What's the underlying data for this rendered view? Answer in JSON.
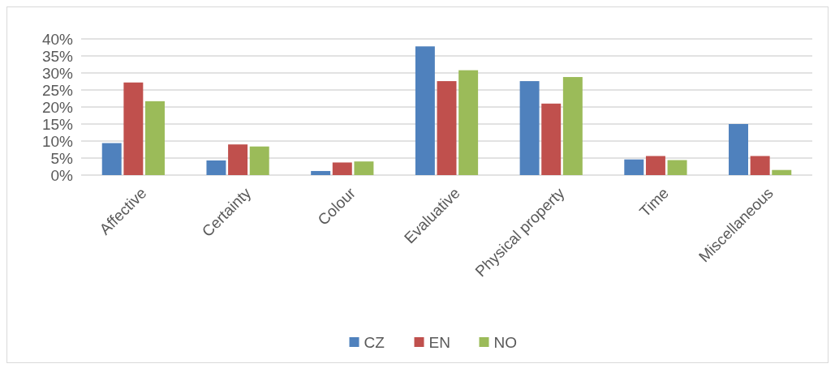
{
  "chart_data": {
    "type": "bar",
    "categories": [
      "Affective",
      "Certainty",
      "Colour",
      "Evaluative",
      "Physical property",
      "Time",
      "Miscellaneous"
    ],
    "series": [
      {
        "name": "CZ",
        "color": "#4f81bd",
        "values": [
          9.4,
          4.3,
          1.2,
          37.8,
          27.6,
          4.6,
          15.0
        ]
      },
      {
        "name": "EN",
        "color": "#c0504d",
        "values": [
          27.2,
          9.0,
          3.7,
          27.6,
          21.0,
          5.6,
          5.6
        ]
      },
      {
        "name": "NO",
        "color": "#9bbb59",
        "values": [
          21.7,
          8.4,
          4.0,
          30.8,
          28.8,
          4.4,
          1.5
        ]
      }
    ],
    "ylim": [
      0,
      40
    ],
    "yticks": [
      {
        "value": 0,
        "label": "0%"
      },
      {
        "value": 5,
        "label": "5%"
      },
      {
        "value": 10,
        "label": "10%"
      },
      {
        "value": 15,
        "label": "15%"
      },
      {
        "value": 20,
        "label": "20%"
      },
      {
        "value": 25,
        "label": "25%"
      },
      {
        "value": 30,
        "label": "30%"
      },
      {
        "value": 35,
        "label": "35%"
      },
      {
        "value": 40,
        "label": "40%"
      }
    ],
    "grid": "y",
    "legend": "bottom"
  }
}
